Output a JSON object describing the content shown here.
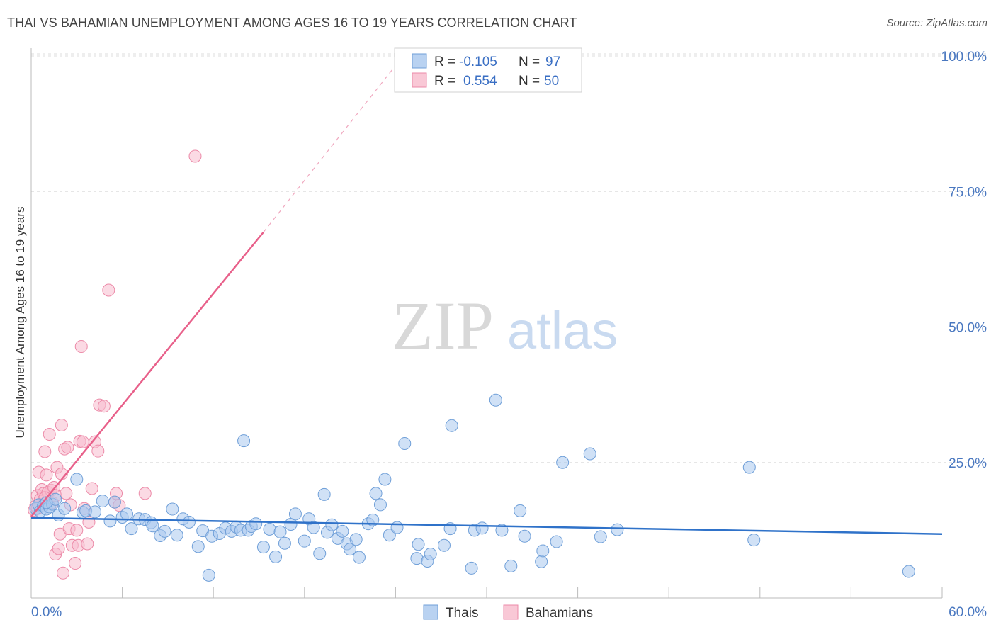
{
  "title": "THAI VS BAHAMIAN UNEMPLOYMENT AMONG AGES 16 TO 19 YEARS CORRELATION CHART",
  "source": "Source: ZipAtlas.com",
  "watermark": {
    "zip": "ZIP",
    "atlas": "atlas"
  },
  "legend_box": {
    "rows": [
      {
        "r_label": "R =",
        "r_value": "-0.105",
        "n_label": "N =",
        "n_value": "97"
      },
      {
        "r_label": "R =",
        "r_value": "0.554",
        "n_label": "N =",
        "n_value": "50"
      }
    ]
  },
  "bottom_legend": [
    "Thais",
    "Bahamians"
  ],
  "colors": {
    "thais_fill": "#a9c8ee",
    "thais_stroke": "#6f9fd8",
    "thais_line": "#2f72c9",
    "bahamians_fill": "#f7bccd",
    "bahamians_stroke": "#ec8aa8",
    "bahamians_line": "#e8608a",
    "axis_text": "#4a78c0",
    "grid": "#dddddd"
  },
  "chart_data": {
    "type": "scatter",
    "xlabel": "",
    "ylabel": "Unemployment Among Ages 16 to 19 years",
    "xlim": [
      0,
      60
    ],
    "ylim": [
      0,
      100
    ],
    "x_tick_labels": [
      {
        "value": 0,
        "label": "0.0%"
      },
      {
        "value": 60,
        "label": "60.0%"
      }
    ],
    "y_tick_labels": [
      {
        "value": 25,
        "label": "25.0%"
      },
      {
        "value": 50,
        "label": "50.0%"
      },
      {
        "value": 75,
        "label": "75.0%"
      },
      {
        "value": 100,
        "label": "100.0%"
      }
    ],
    "grid": "horizontal dashed",
    "legend_position": "top-center",
    "series": [
      {
        "name": "Thais",
        "trend": {
          "x": [
            0,
            60
          ],
          "y": [
            14.8,
            11.8
          ]
        },
        "points": [
          [
            0.3,
            16.5
          ],
          [
            0.5,
            17.2
          ],
          [
            0.6,
            16.0
          ],
          [
            0.8,
            17.0
          ],
          [
            1.0,
            16.4
          ],
          [
            1.2,
            16.8
          ],
          [
            1.4,
            17.3
          ],
          [
            1.6,
            18.2
          ],
          [
            1.8,
            15.3
          ],
          [
            2.2,
            16.5
          ],
          [
            3.0,
            21.9
          ],
          [
            3.4,
            15.8
          ],
          [
            3.6,
            16.1
          ],
          [
            4.2,
            15.9
          ],
          [
            4.7,
            17.9
          ],
          [
            5.2,
            14.2
          ],
          [
            5.5,
            17.7
          ],
          [
            6.0,
            14.9
          ],
          [
            6.3,
            15.5
          ],
          [
            6.6,
            12.8
          ],
          [
            7.1,
            14.6
          ],
          [
            7.5,
            14.5
          ],
          [
            7.9,
            13.9
          ],
          [
            8.0,
            13.3
          ],
          [
            8.5,
            11.5
          ],
          [
            8.8,
            12.3
          ],
          [
            9.3,
            16.4
          ],
          [
            9.6,
            11.6
          ],
          [
            10.0,
            14.6
          ],
          [
            10.4,
            14.0
          ],
          [
            11.0,
            9.5
          ],
          [
            11.3,
            12.4
          ],
          [
            11.7,
            4.2
          ],
          [
            11.9,
            11.4
          ],
          [
            12.4,
            11.9
          ],
          [
            12.8,
            12.9
          ],
          [
            13.2,
            12.3
          ],
          [
            13.5,
            13.1
          ],
          [
            13.8,
            12.5
          ],
          [
            14.0,
            29.0
          ],
          [
            14.3,
            12.5
          ],
          [
            14.5,
            13.2
          ],
          [
            14.8,
            13.7
          ],
          [
            15.3,
            9.4
          ],
          [
            15.7,
            12.7
          ],
          [
            16.1,
            7.6
          ],
          [
            16.4,
            12.2
          ],
          [
            16.7,
            10.1
          ],
          [
            17.1,
            13.6
          ],
          [
            17.4,
            15.5
          ],
          [
            18.0,
            10.5
          ],
          [
            18.3,
            14.6
          ],
          [
            18.6,
            13.0
          ],
          [
            19.0,
            8.2
          ],
          [
            19.3,
            19.1
          ],
          [
            19.5,
            12.1
          ],
          [
            19.8,
            13.5
          ],
          [
            20.2,
            11.0
          ],
          [
            20.5,
            12.3
          ],
          [
            20.8,
            10.0
          ],
          [
            21.0,
            9.0
          ],
          [
            21.4,
            10.8
          ],
          [
            21.6,
            7.5
          ],
          [
            22.2,
            13.7
          ],
          [
            22.5,
            14.4
          ],
          [
            22.7,
            19.3
          ],
          [
            23.0,
            17.2
          ],
          [
            23.3,
            21.9
          ],
          [
            23.6,
            11.6
          ],
          [
            24.1,
            13.0
          ],
          [
            24.6,
            28.5
          ],
          [
            25.4,
            7.3
          ],
          [
            25.5,
            9.9
          ],
          [
            26.1,
            6.8
          ],
          [
            26.3,
            8.1
          ],
          [
            27.2,
            9.7
          ],
          [
            27.6,
            12.8
          ],
          [
            27.7,
            31.8
          ],
          [
            29.0,
            5.5
          ],
          [
            29.2,
            12.5
          ],
          [
            29.7,
            12.9
          ],
          [
            30.6,
            36.5
          ],
          [
            31.0,
            12.5
          ],
          [
            31.6,
            5.9
          ],
          [
            32.2,
            16.1
          ],
          [
            32.5,
            11.4
          ],
          [
            33.6,
            6.7
          ],
          [
            33.7,
            8.7
          ],
          [
            34.6,
            10.4
          ],
          [
            35.0,
            25.0
          ],
          [
            36.8,
            26.6
          ],
          [
            37.5,
            11.3
          ],
          [
            38.6,
            12.6
          ],
          [
            47.3,
            24.1
          ],
          [
            47.6,
            10.7
          ],
          [
            57.8,
            4.9
          ],
          [
            1.0,
            17.6
          ]
        ]
      },
      {
        "name": "Bahamians",
        "trend": {
          "x": [
            0,
            15.3
          ],
          "y": [
            15.0,
            67.5
          ]
        },
        "trend_dashed": {
          "x": [
            15.3,
            24.5
          ],
          "y": [
            67.5,
            100
          ]
        },
        "points": [
          [
            0.2,
            16.2
          ],
          [
            0.3,
            17.0
          ],
          [
            0.4,
            18.9
          ],
          [
            0.5,
            23.2
          ],
          [
            0.6,
            18.2
          ],
          [
            0.7,
            20.0
          ],
          [
            0.8,
            19.3
          ],
          [
            0.9,
            27.0
          ],
          [
            1.0,
            22.7
          ],
          [
            1.1,
            19.5
          ],
          [
            1.2,
            30.2
          ],
          [
            1.3,
            19.9
          ],
          [
            1.4,
            17.6
          ],
          [
            1.5,
            20.4
          ],
          [
            1.6,
            8.1
          ],
          [
            1.6,
            18.9
          ],
          [
            1.7,
            24.1
          ],
          [
            1.8,
            9.1
          ],
          [
            1.9,
            11.8
          ],
          [
            2.0,
            22.9
          ],
          [
            2.0,
            31.9
          ],
          [
            2.1,
            4.6
          ],
          [
            2.2,
            27.5
          ],
          [
            2.3,
            19.3
          ],
          [
            2.4,
            27.8
          ],
          [
            2.5,
            12.8
          ],
          [
            2.6,
            17.2
          ],
          [
            2.7,
            9.7
          ],
          [
            2.9,
            6.4
          ],
          [
            3.0,
            12.5
          ],
          [
            3.1,
            9.7
          ],
          [
            3.2,
            28.9
          ],
          [
            3.3,
            46.4
          ],
          [
            3.4,
            28.8
          ],
          [
            3.5,
            16.5
          ],
          [
            3.7,
            10.0
          ],
          [
            3.8,
            14.0
          ],
          [
            4.0,
            20.2
          ],
          [
            4.2,
            28.8
          ],
          [
            4.4,
            27.1
          ],
          [
            4.5,
            35.6
          ],
          [
            4.8,
            35.4
          ],
          [
            5.1,
            56.8
          ],
          [
            5.5,
            17.7
          ],
          [
            5.6,
            19.3
          ],
          [
            5.8,
            17.1
          ],
          [
            7.5,
            19.3
          ],
          [
            10.8,
            81.5
          ],
          [
            0.4,
            16.5
          ],
          [
            0.9,
            18.5
          ]
        ]
      }
    ]
  }
}
